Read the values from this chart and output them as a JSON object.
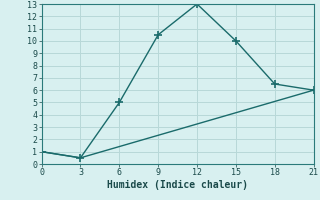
{
  "line1_x": [
    0,
    3,
    6,
    9,
    12,
    15,
    18,
    21
  ],
  "line1_y": [
    1,
    0.5,
    5,
    10.5,
    13,
    10,
    6.5,
    6
  ],
  "line2_x": [
    0,
    3,
    21
  ],
  "line2_y": [
    1,
    0.5,
    6
  ],
  "line_color": "#1a6b6b",
  "bg_color": "#d8f0f0",
  "grid_color": "#b8d8d8",
  "xlabel": "Humidex (Indice chaleur)",
  "xlim": [
    0,
    21
  ],
  "ylim": [
    0,
    13
  ],
  "xticks": [
    0,
    3,
    6,
    9,
    12,
    15,
    18,
    21
  ],
  "yticks": [
    0,
    1,
    2,
    3,
    4,
    5,
    6,
    7,
    8,
    9,
    10,
    11,
    12,
    13
  ],
  "marker": "+",
  "marker_size": 6,
  "line_width": 1.0
}
